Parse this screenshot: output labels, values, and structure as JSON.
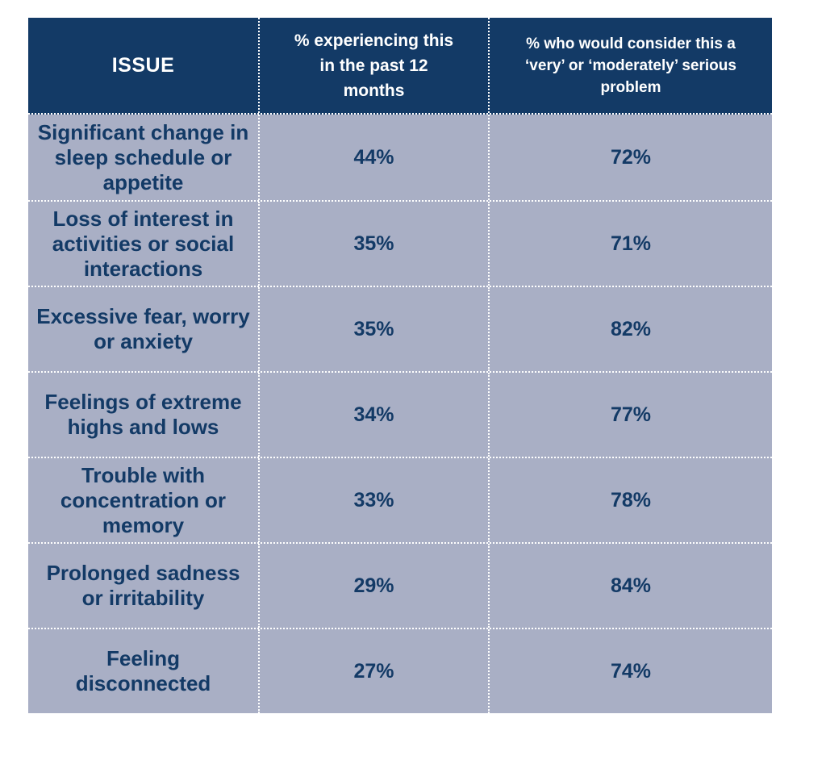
{
  "chart_data": {
    "type": "table",
    "columns": [
      "ISSUE",
      "% experiencing this in the past 12 months",
      "% who would consider this a ‘very’ or ‘moderately’ serious problem"
    ],
    "rows": [
      {
        "issue": "Significant change in sleep schedule or appetite",
        "experiencing": "44%",
        "serious": "72%"
      },
      {
        "issue": "Loss of interest in activities or social interactions",
        "experiencing": "35%",
        "serious": "71%"
      },
      {
        "issue": "Excessive fear, worry or anxiety",
        "experiencing": "35%",
        "serious": "82%"
      },
      {
        "issue": "Feelings of extreme highs and lows",
        "experiencing": "34%",
        "serious": "77%"
      },
      {
        "issue": "Trouble with concentration or memory",
        "experiencing": "33%",
        "serious": "78%"
      },
      {
        "issue": "Prolonged sadness or irritability",
        "experiencing": "29%",
        "serious": "84%"
      },
      {
        "issue": "Feeling disconnected",
        "experiencing": "27%",
        "serious": "74%"
      }
    ],
    "colors": {
      "header_bg": "#133a66",
      "row_bg": "#a9afc5",
      "header_text": "#ffffff",
      "body_text": "#133a66"
    }
  }
}
